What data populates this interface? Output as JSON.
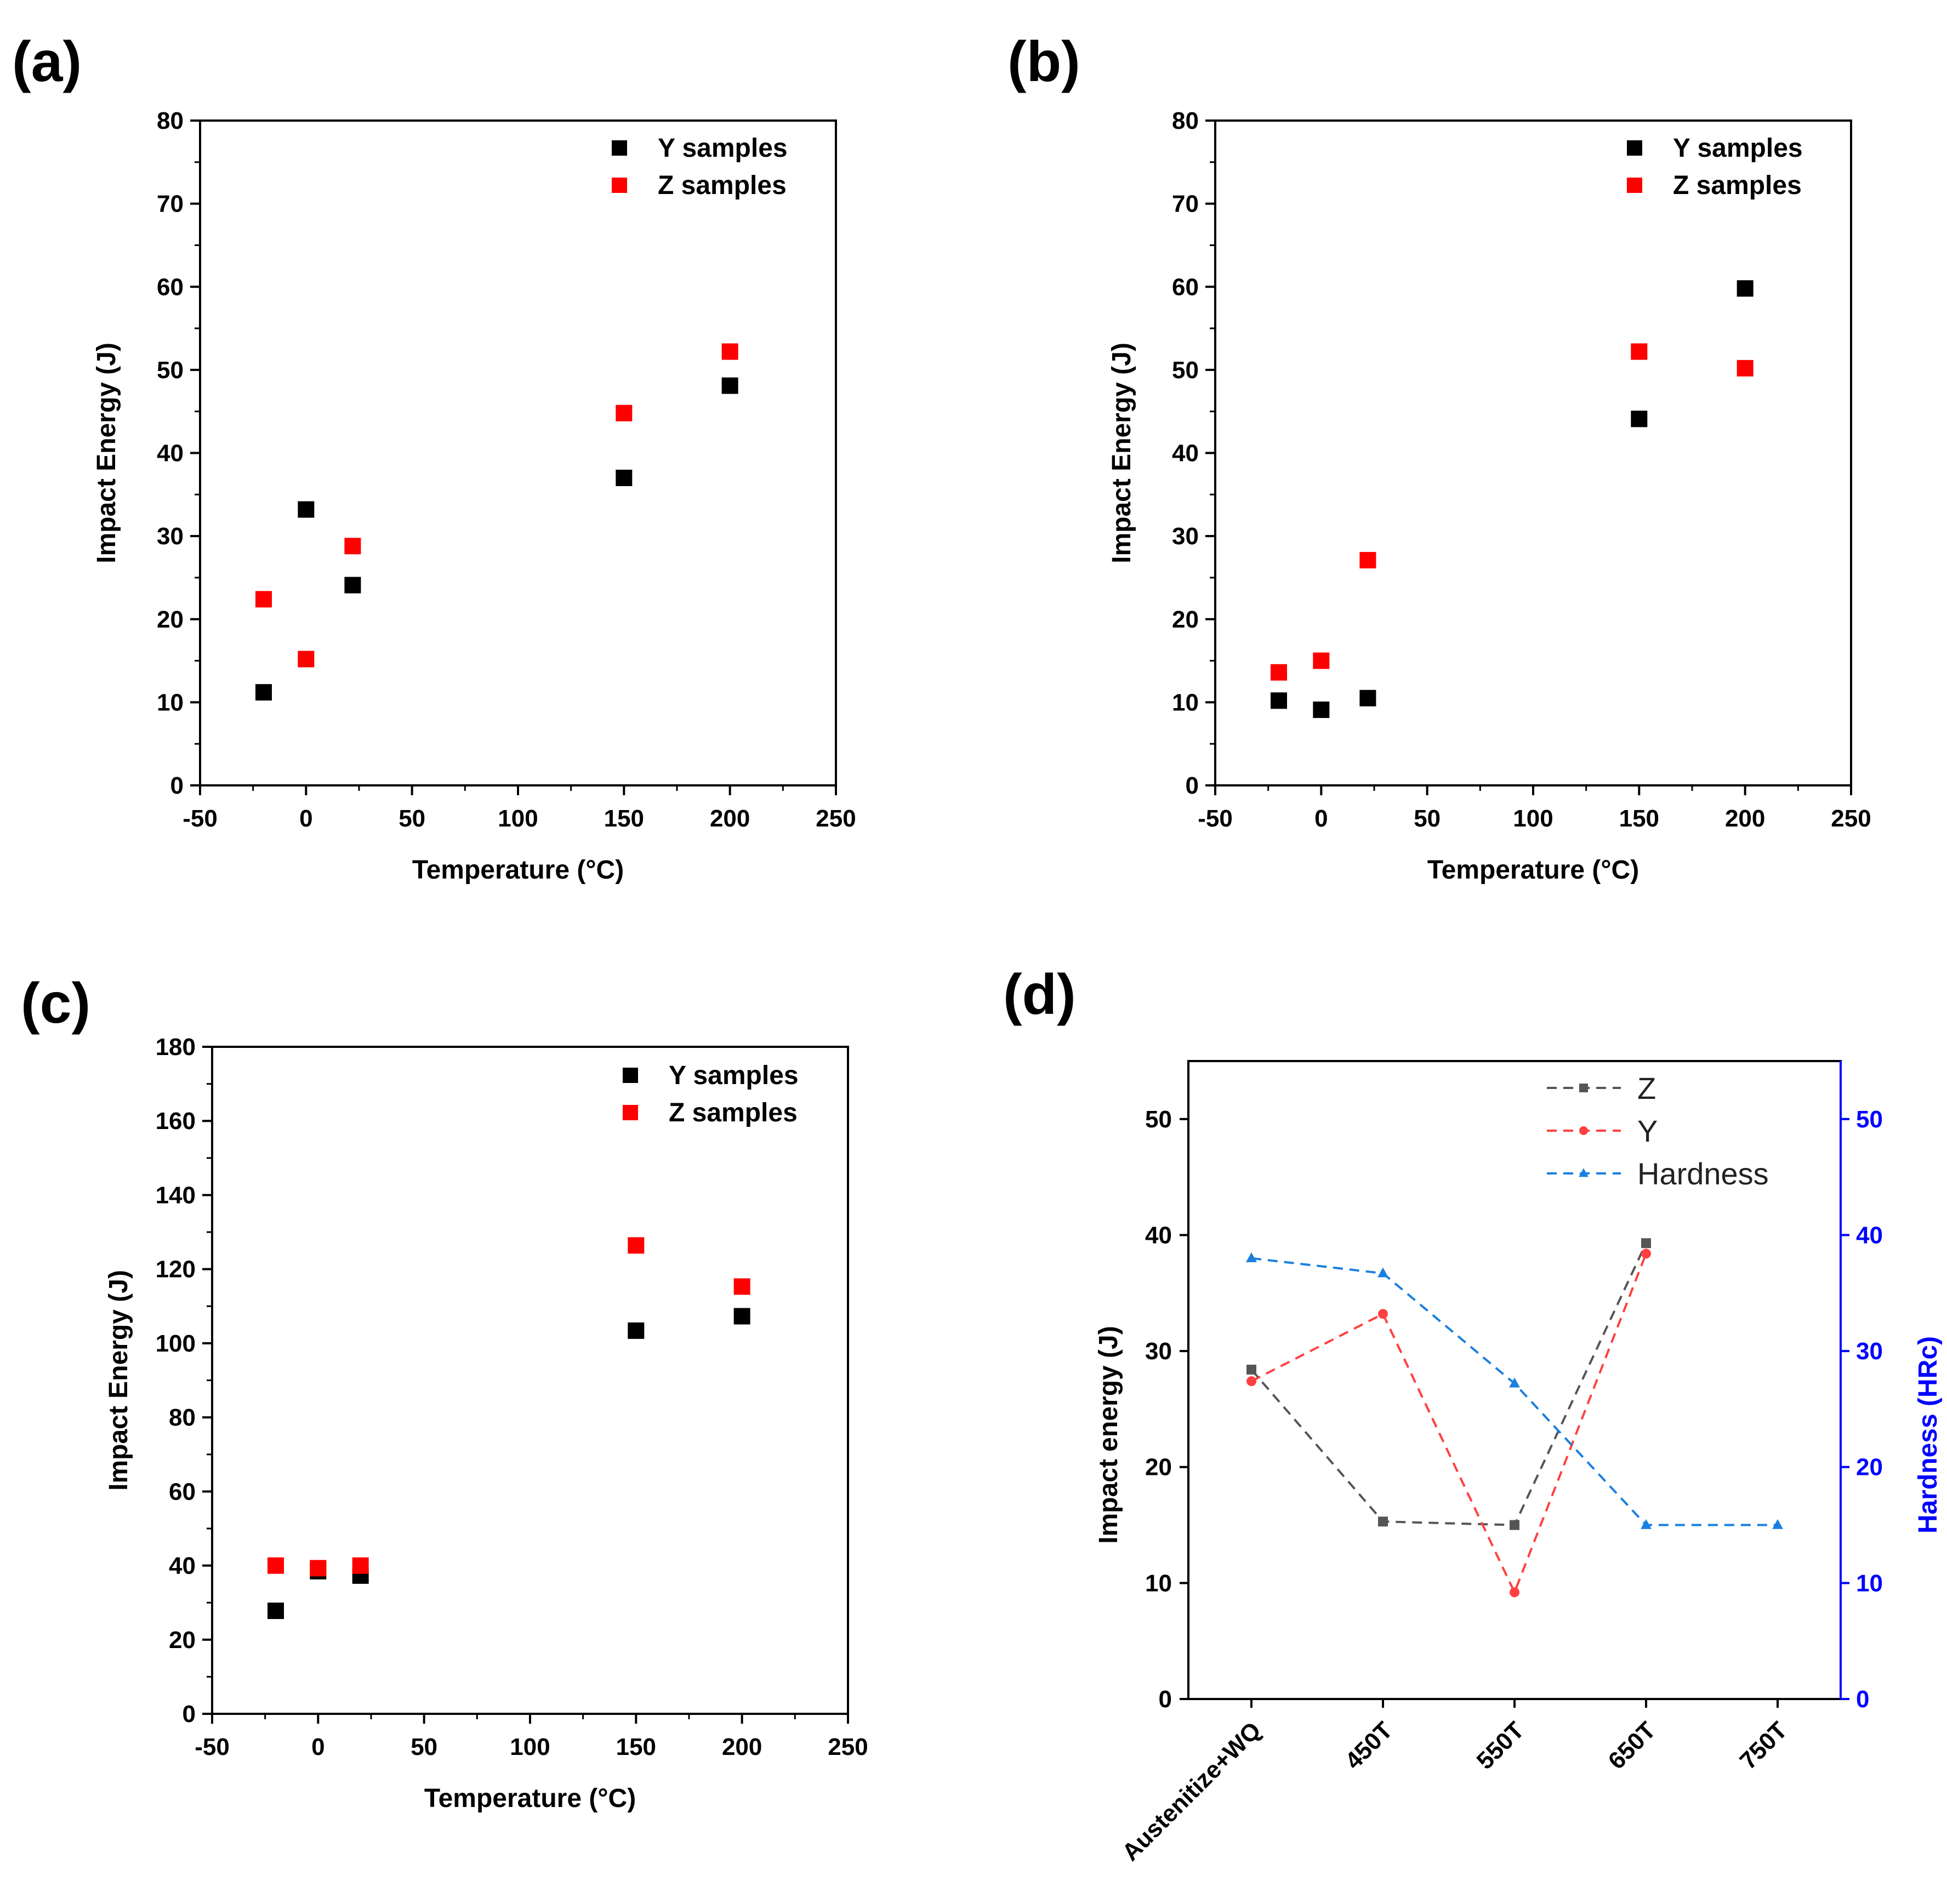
{
  "chart_data": [
    {
      "panel": "(a)",
      "type": "scatter",
      "xlabel": "Temperature (°C)",
      "ylabel": "Impact Energy (J)",
      "xlim": [
        -50,
        250
      ],
      "ylim": [
        0,
        80
      ],
      "xticks": [
        -50,
        0,
        50,
        100,
        150,
        200,
        250
      ],
      "yticks": [
        0,
        10,
        20,
        30,
        40,
        50,
        60,
        70,
        80
      ],
      "legend_position": "top-right",
      "grid": false,
      "series": [
        {
          "name": "Y samples",
          "color": "#000000",
          "marker": "square",
          "x": [
            -20,
            0,
            22,
            150,
            200
          ],
          "y": [
            11.2,
            33.2,
            24.1,
            37.0,
            48.1
          ]
        },
        {
          "name": "Z samples",
          "color": "#ff0000",
          "marker": "square",
          "x": [
            -20,
            0,
            22,
            150,
            200
          ],
          "y": [
            22.4,
            15.2,
            28.8,
            44.8,
            52.2
          ]
        }
      ]
    },
    {
      "panel": "(b)",
      "type": "scatter",
      "xlabel": "Temperature (°C)",
      "ylabel": "Impact Energy (J)",
      "xlim": [
        -50,
        250
      ],
      "ylim": [
        0,
        80
      ],
      "xticks": [
        -50,
        0,
        50,
        100,
        150,
        200,
        250
      ],
      "yticks": [
        0,
        10,
        20,
        30,
        40,
        50,
        60,
        70,
        80
      ],
      "legend_position": "top-right",
      "grid": false,
      "series": [
        {
          "name": "Y samples",
          "color": "#000000",
          "marker": "square",
          "x": [
            -20,
            0,
            22,
            150,
            200
          ],
          "y": [
            10.2,
            9.1,
            10.5,
            44.1,
            59.8
          ]
        },
        {
          "name": "Z samples",
          "color": "#ff0000",
          "marker": "square",
          "x": [
            -20,
            0,
            22,
            150,
            200
          ],
          "y": [
            13.6,
            15.0,
            27.1,
            52.2,
            50.2
          ]
        }
      ]
    },
    {
      "panel": "(c)",
      "type": "scatter",
      "xlabel": "Temperature (°C)",
      "ylabel": "Impact Energy (J)",
      "xlim": [
        -50,
        250
      ],
      "ylim": [
        0,
        180
      ],
      "xticks": [
        -50,
        0,
        50,
        100,
        150,
        200,
        250
      ],
      "yticks": [
        0,
        20,
        40,
        60,
        80,
        100,
        120,
        140,
        160,
        180
      ],
      "legend_position": "top-right",
      "grid": false,
      "series": [
        {
          "name": "Y samples",
          "color": "#000000",
          "marker": "square",
          "x": [
            -20,
            0,
            20,
            150,
            200
          ],
          "y": [
            27.8,
            38.5,
            37.3,
            103.4,
            107.3
          ]
        },
        {
          "name": "Z samples",
          "color": "#ff0000",
          "marker": "square",
          "x": [
            -20,
            0,
            20,
            150,
            200
          ],
          "y": [
            40.0,
            39.3,
            40.0,
            126.4,
            115.3
          ]
        }
      ]
    },
    {
      "panel": "(d)",
      "type": "line",
      "categories": [
        "Austenitize+WQ",
        "450T",
        "550T",
        "650T",
        "750T"
      ],
      "ylabel": "Impact energy (J)",
      "y2label": "Hardness (HRc)",
      "ylim": [
        0,
        55
      ],
      "y2lim": [
        0,
        55
      ],
      "yticks": [
        0,
        10,
        20,
        30,
        40,
        50
      ],
      "y2ticks": [
        0,
        10,
        20,
        30,
        40,
        50
      ],
      "y2_color": "#0000ff",
      "legend_position": "top-center",
      "grid": false,
      "series": [
        {
          "name": "Z",
          "color": "#555555",
          "marker": "square",
          "dashed": true,
          "axis": "left",
          "values": [
            28.4,
            15.3,
            15.0,
            39.3,
            null
          ]
        },
        {
          "name": "Y",
          "color": "#ff4040",
          "marker": "circle",
          "dashed": true,
          "axis": "left",
          "values": [
            27.4,
            33.2,
            9.2,
            38.4,
            null
          ]
        },
        {
          "name": "Hardness",
          "color": "#1a7fe0",
          "marker": "triangle",
          "dashed": true,
          "axis": "right",
          "values": [
            38.0,
            36.7,
            27.2,
            15.0,
            15.0
          ]
        }
      ]
    }
  ]
}
